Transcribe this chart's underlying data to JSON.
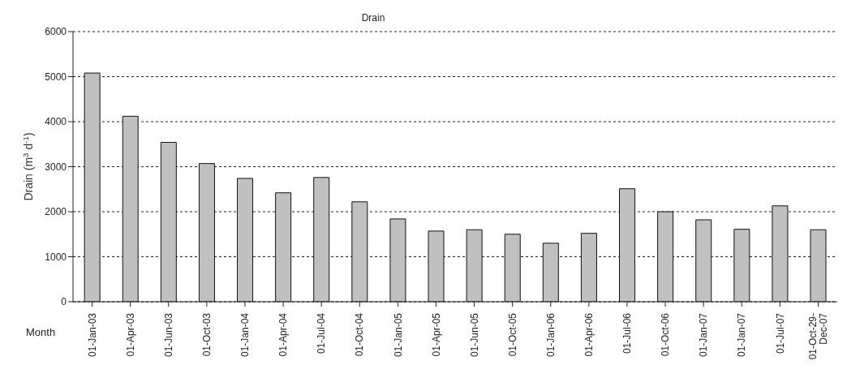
{
  "chart_data": {
    "type": "bar",
    "title": "Drain",
    "xlabel": "Month",
    "ylabel": "Drain (m$^{3}$ d$^{-1}$)",
    "categories": [
      "01-Jan-03",
      "01-Apr-03",
      "01-Jun-03",
      "01-Oct-03",
      "01-Jan-04",
      "01-Apr-04",
      "01-Jul-04",
      "01-Oct-04",
      "01-Jan-05",
      "01-Apr-05",
      "01-Jun-05",
      "01-Oct-05",
      "01-Jan-06",
      "01-Apr-06",
      "01-Jul-06",
      "01-Oct-06",
      "01-Jan-07",
      "01-Jan-07",
      "01-Jul-07",
      "01-Oct-29-Dec-07"
    ],
    "values": [
      5080,
      4120,
      3540,
      3070,
      2740,
      2420,
      2760,
      2220,
      1840,
      1570,
      1600,
      1500,
      1300,
      1520,
      2510,
      2000,
      1820,
      1610,
      2130,
      1600
    ],
    "color": "#c0c0c0",
    "ylim": [
      0,
      6000
    ],
    "yticks": [
      0,
      1000,
      2000,
      3000,
      4000,
      5000,
      6000
    ],
    "grid": "y",
    "legend": false
  }
}
